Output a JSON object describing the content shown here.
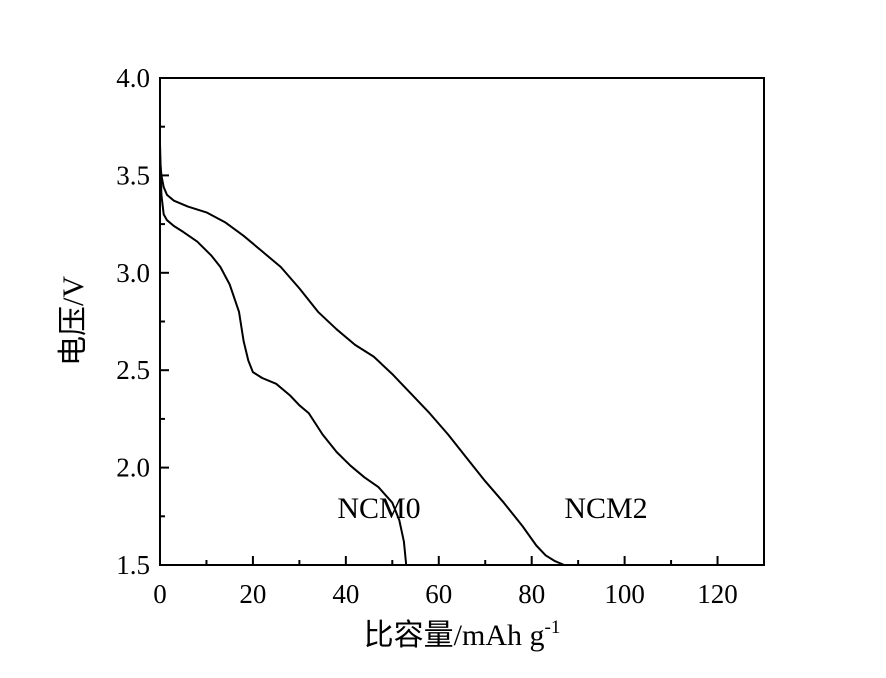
{
  "chart_data": {
    "type": "line",
    "xlabel": "比容量/mAh g",
    "xlabel_sup": "-1",
    "ylabel": "电压/V",
    "xlim": [
      0,
      130
    ],
    "ylim": [
      1.5,
      4.0
    ],
    "xticks": [
      0,
      20,
      40,
      60,
      80,
      100,
      120
    ],
    "yticks": [
      1.5,
      2.0,
      2.5,
      3.0,
      3.5,
      4.0
    ],
    "xtick_labels": [
      "0",
      "20",
      "40",
      "60",
      "80",
      "100",
      "120"
    ],
    "ytick_labels": [
      "1.5",
      "2.0",
      "2.5",
      "3.0",
      "3.5",
      "4.0"
    ],
    "grid": false,
    "series": [
      {
        "name": "NCM0",
        "x": [
          0,
          0.3,
          0.8,
          1.5,
          3,
          5,
          8,
          11,
          13,
          15,
          17,
          18,
          19,
          20,
          22,
          25,
          28,
          30,
          32,
          35,
          38,
          41,
          44,
          47,
          50,
          51.5,
          52.5,
          53
        ],
        "y": [
          3.66,
          3.4,
          3.3,
          3.27,
          3.24,
          3.21,
          3.16,
          3.09,
          3.03,
          2.94,
          2.8,
          2.65,
          2.55,
          2.49,
          2.46,
          2.43,
          2.37,
          2.32,
          2.28,
          2.17,
          2.08,
          2.01,
          1.95,
          1.9,
          1.82,
          1.73,
          1.62,
          1.5
        ]
      },
      {
        "name": "NCM2",
        "x": [
          0,
          0.3,
          0.8,
          1.5,
          3,
          6,
          10,
          14,
          18,
          22,
          26,
          30,
          34,
          38,
          42,
          46,
          50,
          54,
          58,
          62,
          66,
          70,
          74,
          78,
          81,
          83,
          85,
          87
        ],
        "y": [
          3.58,
          3.5,
          3.44,
          3.4,
          3.37,
          3.34,
          3.31,
          3.26,
          3.19,
          3.11,
          3.03,
          2.92,
          2.8,
          2.71,
          2.63,
          2.57,
          2.48,
          2.38,
          2.28,
          2.17,
          2.05,
          1.93,
          1.82,
          1.7,
          1.6,
          1.55,
          1.52,
          1.5
        ]
      }
    ]
  }
}
